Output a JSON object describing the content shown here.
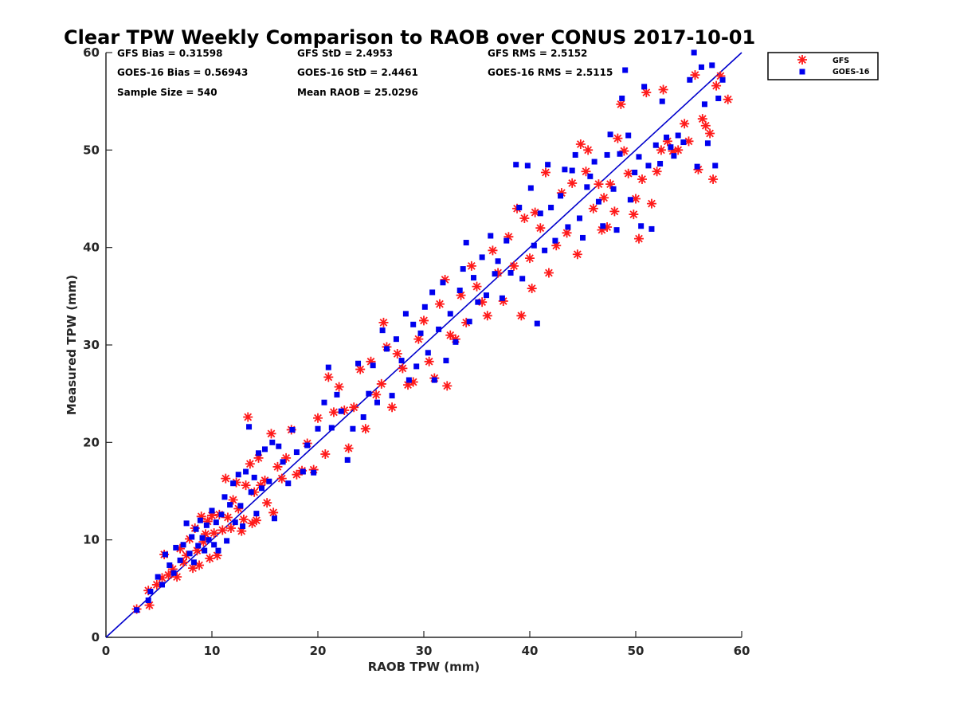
{
  "chart_data": {
    "type": "scatter",
    "title": "Clear TPW Weekly Comparison to RAOB over CONUS 2017-10-01",
    "xlabel": "RAOB TPW (mm)",
    "ylabel": "Measured TPW (mm)",
    "xlim": [
      0,
      60
    ],
    "ylim": [
      0,
      60
    ],
    "xticks": [
      "0",
      "10",
      "20",
      "30",
      "40",
      "50",
      "60"
    ],
    "yticks": [
      "0",
      "10",
      "20",
      "30",
      "40",
      "50",
      "60"
    ],
    "grid": false,
    "legend_position": "outside-top-right",
    "reference_line": {
      "name": "1:1 line",
      "x": [
        0,
        60
      ],
      "y": [
        0,
        60
      ],
      "color": "#0000cc"
    },
    "stats": {
      "gfs_bias": "GFS Bias = 0.31598",
      "goes_bias": "GOES-16 Bias = 0.56943",
      "sample_size": "Sample Size = 540",
      "gfs_std": "GFS StD = 2.4953",
      "goes_std": "GOES-16 StD = 2.4461",
      "mean_raob": "Mean RAOB = 25.0296",
      "gfs_rms": "GFS RMS = 2.5152",
      "goes_rms": "GOES-16 RMS = 2.5115"
    },
    "series": [
      {
        "name": "GFS",
        "marker": "asterisk",
        "color": "#ff1a1a",
        "points": [
          [
            2.9,
            2.9
          ],
          [
            4.0,
            4.8
          ],
          [
            4.1,
            3.3
          ],
          [
            4.8,
            5.4
          ],
          [
            5.3,
            6.1
          ],
          [
            5.5,
            8.5
          ],
          [
            5.9,
            6.4
          ],
          [
            6.3,
            7.0
          ],
          [
            6.7,
            6.2
          ],
          [
            7.0,
            9.1
          ],
          [
            7.3,
            7.7
          ],
          [
            7.6,
            8.4
          ],
          [
            7.9,
            10.1
          ],
          [
            8.2,
            7.1
          ],
          [
            8.4,
            11.2
          ],
          [
            8.6,
            8.9
          ],
          [
            8.8,
            7.4
          ],
          [
            9.0,
            12.4
          ],
          [
            9.2,
            9.8
          ],
          [
            9.4,
            10.6
          ],
          [
            9.6,
            11.9
          ],
          [
            9.8,
            8.1
          ],
          [
            10.0,
            12.5
          ],
          [
            10.2,
            10.7
          ],
          [
            10.5,
            8.4
          ],
          [
            10.7,
            12.6
          ],
          [
            11.0,
            11.0
          ],
          [
            11.3,
            16.3
          ],
          [
            11.5,
            12.3
          ],
          [
            11.8,
            11.2
          ],
          [
            12.0,
            14.1
          ],
          [
            12.3,
            15.9
          ],
          [
            12.5,
            13.2
          ],
          [
            12.8,
            10.9
          ],
          [
            13.0,
            12.1
          ],
          [
            13.2,
            15.6
          ],
          [
            13.4,
            22.6
          ],
          [
            13.6,
            17.8
          ],
          [
            13.8,
            11.7
          ],
          [
            14.0,
            14.9
          ],
          [
            14.2,
            12.0
          ],
          [
            14.4,
            18.4
          ],
          [
            14.6,
            15.6
          ],
          [
            15.0,
            16.1
          ],
          [
            15.2,
            13.8
          ],
          [
            15.6,
            20.9
          ],
          [
            15.8,
            12.8
          ],
          [
            16.2,
            17.5
          ],
          [
            16.6,
            16.3
          ],
          [
            17.0,
            18.4
          ],
          [
            17.5,
            21.3
          ],
          [
            18.0,
            16.7
          ],
          [
            18.5,
            17.1
          ],
          [
            19.0,
            19.9
          ],
          [
            19.6,
            17.2
          ],
          [
            20.0,
            22.5
          ],
          [
            20.7,
            18.8
          ],
          [
            21.0,
            26.7
          ],
          [
            21.5,
            23.1
          ],
          [
            22.0,
            25.7
          ],
          [
            22.5,
            23.3
          ],
          [
            22.9,
            19.4
          ],
          [
            23.4,
            23.6
          ],
          [
            24.0,
            27.5
          ],
          [
            24.5,
            21.4
          ],
          [
            25.0,
            28.3
          ],
          [
            25.5,
            24.9
          ],
          [
            26.0,
            26.0
          ],
          [
            26.2,
            32.3
          ],
          [
            26.5,
            29.8
          ],
          [
            27.0,
            23.6
          ],
          [
            27.5,
            29.1
          ],
          [
            28.0,
            27.6
          ],
          [
            28.5,
            25.9
          ],
          [
            29.0,
            26.2
          ],
          [
            29.5,
            30.6
          ],
          [
            30.0,
            32.5
          ],
          [
            30.5,
            28.3
          ],
          [
            31.0,
            26.6
          ],
          [
            31.5,
            34.2
          ],
          [
            32.0,
            36.7
          ],
          [
            32.2,
            25.8
          ],
          [
            32.5,
            31.0
          ],
          [
            33.0,
            30.6
          ],
          [
            33.5,
            35.1
          ],
          [
            34.0,
            32.3
          ],
          [
            34.5,
            38.1
          ],
          [
            35.0,
            36.0
          ],
          [
            35.5,
            34.4
          ],
          [
            36.0,
            33.0
          ],
          [
            36.5,
            39.7
          ],
          [
            37.0,
            37.4
          ],
          [
            37.5,
            34.5
          ],
          [
            38.0,
            41.1
          ],
          [
            38.5,
            38.1
          ],
          [
            38.8,
            44.0
          ],
          [
            39.2,
            33.0
          ],
          [
            39.5,
            43.0
          ],
          [
            40.0,
            38.9
          ],
          [
            40.2,
            35.8
          ],
          [
            40.5,
            43.6
          ],
          [
            41.0,
            42.0
          ],
          [
            41.5,
            47.7
          ],
          [
            41.8,
            37.4
          ],
          [
            42.5,
            40.2
          ],
          [
            43.0,
            45.6
          ],
          [
            43.5,
            41.5
          ],
          [
            44.0,
            46.6
          ],
          [
            44.5,
            39.3
          ],
          [
            44.8,
            50.6
          ],
          [
            45.3,
            47.8
          ],
          [
            45.5,
            50.0
          ],
          [
            46.0,
            44.0
          ],
          [
            46.5,
            46.5
          ],
          [
            46.8,
            41.8
          ],
          [
            47.0,
            45.1
          ],
          [
            47.3,
            42.1
          ],
          [
            47.6,
            46.5
          ],
          [
            48.0,
            43.7
          ],
          [
            48.3,
            51.2
          ],
          [
            48.6,
            54.7
          ],
          [
            48.9,
            49.9
          ],
          [
            49.3,
            47.6
          ],
          [
            49.8,
            43.4
          ],
          [
            50.0,
            45.0
          ],
          [
            50.3,
            40.9
          ],
          [
            50.6,
            47.0
          ],
          [
            51.0,
            55.9
          ],
          [
            51.5,
            44.5
          ],
          [
            52.0,
            47.8
          ],
          [
            52.4,
            50.0
          ],
          [
            52.6,
            56.2
          ],
          [
            53.0,
            50.9
          ],
          [
            53.5,
            49.9
          ],
          [
            54.0,
            50.0
          ],
          [
            54.6,
            52.7
          ],
          [
            55.0,
            50.9
          ],
          [
            55.6,
            57.7
          ],
          [
            55.9,
            48.0
          ],
          [
            56.3,
            53.2
          ],
          [
            56.6,
            52.5
          ],
          [
            57.0,
            51.7
          ],
          [
            57.3,
            47.0
          ],
          [
            57.6,
            56.6
          ],
          [
            58.0,
            57.6
          ],
          [
            58.7,
            55.2
          ]
        ]
      },
      {
        "name": "GOES-16",
        "marker": "square",
        "color": "#0000ee",
        "points": [
          [
            2.9,
            2.8
          ],
          [
            4.0,
            3.8
          ],
          [
            4.2,
            4.7
          ],
          [
            4.9,
            6.2
          ],
          [
            5.3,
            5.4
          ],
          [
            5.6,
            8.5
          ],
          [
            6.0,
            7.4
          ],
          [
            6.4,
            6.6
          ],
          [
            6.6,
            9.2
          ],
          [
            7.0,
            7.9
          ],
          [
            7.3,
            9.5
          ],
          [
            7.6,
            11.7
          ],
          [
            7.9,
            8.6
          ],
          [
            8.1,
            10.3
          ],
          [
            8.3,
            7.7
          ],
          [
            8.5,
            11.1
          ],
          [
            8.7,
            9.4
          ],
          [
            8.9,
            12.0
          ],
          [
            9.1,
            10.2
          ],
          [
            9.3,
            8.9
          ],
          [
            9.5,
            11.5
          ],
          [
            9.7,
            10.0
          ],
          [
            10.0,
            13.0
          ],
          [
            10.2,
            9.5
          ],
          [
            10.4,
            11.8
          ],
          [
            10.6,
            8.9
          ],
          [
            10.9,
            12.6
          ],
          [
            11.2,
            14.4
          ],
          [
            11.4,
            9.9
          ],
          [
            11.7,
            13.6
          ],
          [
            12.0,
            15.8
          ],
          [
            12.2,
            11.8
          ],
          [
            12.5,
            16.7
          ],
          [
            12.7,
            13.5
          ],
          [
            12.9,
            11.4
          ],
          [
            13.2,
            17.0
          ],
          [
            13.5,
            21.6
          ],
          [
            13.7,
            14.9
          ],
          [
            14.0,
            16.4
          ],
          [
            14.2,
            12.7
          ],
          [
            14.4,
            18.9
          ],
          [
            14.7,
            15.3
          ],
          [
            15.0,
            19.3
          ],
          [
            15.4,
            16.0
          ],
          [
            15.7,
            20.0
          ],
          [
            15.9,
            12.2
          ],
          [
            16.3,
            19.6
          ],
          [
            16.7,
            18.0
          ],
          [
            17.2,
            15.8
          ],
          [
            17.6,
            21.3
          ],
          [
            18.0,
            19.0
          ],
          [
            18.6,
            17.0
          ],
          [
            19.0,
            19.7
          ],
          [
            19.6,
            16.9
          ],
          [
            20.0,
            21.4
          ],
          [
            20.6,
            24.1
          ],
          [
            21.0,
            27.7
          ],
          [
            21.3,
            21.5
          ],
          [
            21.8,
            24.9
          ],
          [
            22.2,
            23.2
          ],
          [
            22.8,
            18.2
          ],
          [
            23.3,
            21.4
          ],
          [
            23.8,
            28.1
          ],
          [
            24.3,
            22.6
          ],
          [
            24.8,
            25.0
          ],
          [
            25.2,
            27.9
          ],
          [
            25.6,
            24.1
          ],
          [
            26.1,
            31.5
          ],
          [
            26.5,
            29.6
          ],
          [
            27.0,
            24.8
          ],
          [
            27.4,
            30.6
          ],
          [
            27.9,
            28.4
          ],
          [
            28.3,
            33.2
          ],
          [
            28.6,
            26.4
          ],
          [
            29.0,
            32.1
          ],
          [
            29.3,
            27.8
          ],
          [
            29.7,
            31.2
          ],
          [
            30.1,
            33.9
          ],
          [
            30.4,
            29.2
          ],
          [
            30.8,
            35.4
          ],
          [
            31.0,
            26.4
          ],
          [
            31.4,
            31.6
          ],
          [
            31.8,
            36.4
          ],
          [
            32.1,
            28.4
          ],
          [
            32.5,
            33.2
          ],
          [
            33.0,
            30.3
          ],
          [
            33.4,
            35.6
          ],
          [
            33.7,
            37.8
          ],
          [
            34.0,
            40.5
          ],
          [
            34.3,
            32.4
          ],
          [
            34.7,
            36.9
          ],
          [
            35.1,
            34.4
          ],
          [
            35.5,
            39.0
          ],
          [
            35.9,
            35.1
          ],
          [
            36.3,
            41.2
          ],
          [
            36.7,
            37.3
          ],
          [
            37.0,
            38.6
          ],
          [
            37.4,
            34.8
          ],
          [
            37.8,
            40.7
          ],
          [
            38.2,
            37.4
          ],
          [
            38.7,
            48.5
          ],
          [
            39.0,
            44.1
          ],
          [
            39.3,
            36.8
          ],
          [
            39.8,
            48.4
          ],
          [
            40.1,
            46.1
          ],
          [
            40.4,
            40.2
          ],
          [
            40.7,
            32.2
          ],
          [
            41.0,
            43.5
          ],
          [
            41.4,
            39.7
          ],
          [
            41.7,
            48.5
          ],
          [
            42.0,
            44.1
          ],
          [
            42.4,
            40.7
          ],
          [
            42.9,
            45.3
          ],
          [
            43.3,
            48.0
          ],
          [
            43.6,
            42.1
          ],
          [
            44.0,
            47.9
          ],
          [
            44.3,
            49.5
          ],
          [
            44.7,
            43.0
          ],
          [
            45.0,
            41.0
          ],
          [
            45.4,
            46.2
          ],
          [
            45.7,
            47.3
          ],
          [
            46.1,
            48.8
          ],
          [
            46.5,
            44.7
          ],
          [
            46.9,
            42.2
          ],
          [
            47.3,
            49.5
          ],
          [
            47.6,
            51.6
          ],
          [
            47.9,
            46.0
          ],
          [
            48.2,
            41.8
          ],
          [
            48.5,
            49.6
          ],
          [
            48.7,
            55.3
          ],
          [
            49.0,
            58.2
          ],
          [
            49.3,
            51.5
          ],
          [
            49.5,
            44.9
          ],
          [
            49.9,
            47.7
          ],
          [
            50.3,
            49.3
          ],
          [
            50.5,
            42.2
          ],
          [
            50.8,
            56.5
          ],
          [
            51.2,
            48.4
          ],
          [
            51.5,
            41.9
          ],
          [
            51.9,
            50.5
          ],
          [
            52.3,
            48.6
          ],
          [
            52.5,
            55.0
          ],
          [
            52.9,
            51.3
          ],
          [
            53.3,
            50.3
          ],
          [
            53.6,
            49.4
          ],
          [
            54.0,
            51.5
          ],
          [
            54.5,
            50.8
          ],
          [
            55.1,
            57.2
          ],
          [
            55.5,
            60.0
          ],
          [
            55.8,
            48.3
          ],
          [
            56.2,
            58.5
          ],
          [
            56.5,
            54.7
          ],
          [
            56.8,
            50.7
          ],
          [
            57.2,
            58.7
          ],
          [
            57.5,
            48.4
          ],
          [
            57.8,
            55.3
          ],
          [
            58.2,
            57.2
          ]
        ]
      }
    ]
  }
}
